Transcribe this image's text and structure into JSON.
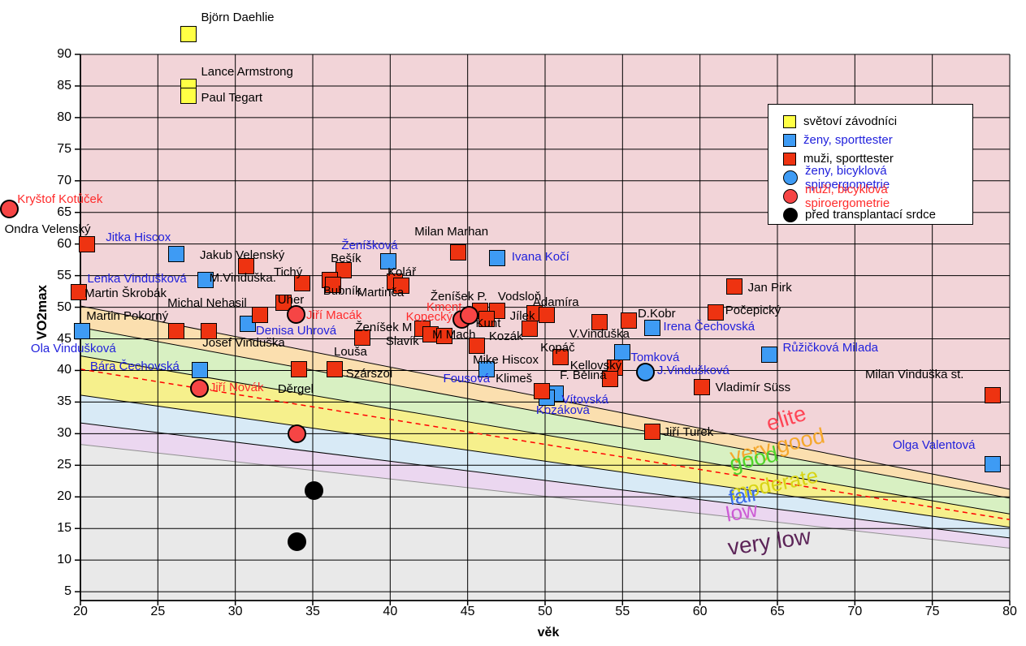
{
  "legend": {
    "items": [
      {
        "label": "světoví závodníci",
        "marker": "square",
        "fill": "#FFFF45",
        "text_color": "#000000"
      },
      {
        "label": "ženy, sporttester",
        "marker": "square",
        "fill": "#3E9BF4",
        "text_color": "#1F1FDC"
      },
      {
        "label": "muži, sporttester",
        "marker": "square",
        "fill": "#EE3311",
        "text_color": "#000000"
      },
      {
        "label": "ženy, bicyklová spiroergometrie",
        "marker": "circle",
        "fill": "#3E9BF4",
        "text_color": "#1F1FDC"
      },
      {
        "label": "muži, bicyklová spiroergometrie",
        "marker": "circle",
        "fill": "#F64545",
        "text_color": "#FF2B2B"
      },
      {
        "label": "před transplantací srdce",
        "marker": "circle",
        "fill": "#000000",
        "text_color": "#000000"
      }
    ]
  },
  "chart_data": {
    "type": "scatter",
    "title": "",
    "xlabel": "věk",
    "ylabel": "VO2max",
    "xlim": [
      20,
      80
    ],
    "ylim": [
      3.6,
      90
    ],
    "x_ticks": [
      20,
      25,
      30,
      35,
      40,
      45,
      50,
      55,
      60,
      65,
      70,
      75,
      80
    ],
    "y_ticks": [
      5,
      10,
      15,
      20,
      25,
      30,
      35,
      40,
      45,
      50,
      55,
      60,
      65,
      70,
      75,
      80,
      85,
      90
    ],
    "grid": true,
    "legend_position": "top-right",
    "zones": [
      {
        "name": "elite",
        "color": "#F2D4D8",
        "bottom_at_20": 50.2,
        "bottom_at_80": 21.2,
        "line": "#000000"
      },
      {
        "name": "very good",
        "color": "#FBDFAF",
        "bottom_at_20": 46.8,
        "bottom_at_80": 19.8,
        "line": "#000000"
      },
      {
        "name": "good",
        "color": "#D8F0C2",
        "bottom_at_20": 42.3,
        "bottom_at_80": 17.3,
        "line": "#000000"
      },
      {
        "name": "moderate",
        "color": "#F6F08C",
        "bottom_at_20": 36.1,
        "bottom_at_80": 15.2,
        "line": "#000000"
      },
      {
        "name": "fair",
        "color": "#D8EAF6",
        "bottom_at_20": 31.7,
        "bottom_at_80": 13.5,
        "line": "#000000"
      },
      {
        "name": "low",
        "color": "#EBD7F0",
        "bottom_at_20": 28.3,
        "bottom_at_80": 11.9,
        "line": "#909090"
      },
      {
        "name": "very low",
        "color": "#E9E9E9",
        "bottom_at_20": 3.6,
        "bottom_at_80": 3.6,
        "line": "none"
      }
    ],
    "reference_line": {
      "style": "dashed",
      "color": "#FF0000",
      "y_at_20": 40.2,
      "y_at_80": 16.4
    },
    "zone_labels": [
      {
        "text": "elite",
        "x": 65.6,
        "y": 32.4,
        "color": "#FF4455",
        "size": 27,
        "rot": -17
      },
      {
        "text": "very good",
        "x": 65.0,
        "y": 28.0,
        "color": "#F5A82C",
        "size": 27,
        "rot": -13
      },
      {
        "text": "good",
        "x": 63.5,
        "y": 25.9,
        "color": "#4FD42C",
        "size": 27,
        "rot": -13
      },
      {
        "text": "moderate",
        "x": 64.8,
        "y": 21.9,
        "color": "#D8D414",
        "size": 26,
        "rot": -12
      },
      {
        "text": "fair",
        "x": 62.8,
        "y": 20.1,
        "color": "#3B6BE8",
        "size": 26,
        "rot": -10
      },
      {
        "text": "low",
        "x": 62.7,
        "y": 17.6,
        "color": "#CC5BD4",
        "size": 26,
        "rot": -10
      },
      {
        "text": "very low",
        "x": 64.5,
        "y": 12.8,
        "color": "#5C2458",
        "size": 28,
        "rot": -8
      }
    ],
    "series": [
      {
        "name": "světoví závodníci",
        "marker": "square",
        "fill": "#FFFF45",
        "label_color": "#000000",
        "points": [
          {
            "l": "Björn Daehlie",
            "x": 27.0,
            "y": 93.2,
            "dx": 15,
            "dy": -20
          },
          {
            "l": "Lance Armstrong",
            "x": 27.0,
            "y": 84.9,
            "dx": 15,
            "dy": -18
          },
          {
            "l": "Paul Tegart",
            "x": 27.0,
            "y": 83.5,
            "dx": 15,
            "dy": 3
          }
        ]
      },
      {
        "name": "ženy, sporttester",
        "marker": "square",
        "fill": "#3E9BF4",
        "label_color": "#1F1FDC",
        "points": [
          {
            "l": "Jitka Hiscox",
            "x": 26.2,
            "y": 58.4,
            "dx": -87,
            "dy": -20
          },
          {
            "l": "Lenka Vindušková",
            "x": 28.1,
            "y": 54.3,
            "dx": -146,
            "dy": -1
          },
          {
            "l": "Ženíšková",
            "x": 39.9,
            "y": 57.3,
            "dx": -58,
            "dy": -19
          },
          {
            "l": "Ivana Kočí",
            "x": 46.9,
            "y": 57.8,
            "dx": 18,
            "dy": -1
          },
          {
            "l": "Denisa Uhrová",
            "x": 30.8,
            "y": 47.4,
            "dx": 10,
            "dy": 9
          },
          {
            "l": "Ola Vindušková",
            "x": 20.1,
            "y": 46.2,
            "dx": -63,
            "dy": 22
          },
          {
            "l": "Bára Čechovská",
            "x": 27.7,
            "y": 40.1,
            "dx": -135,
            "dy": -4
          },
          {
            "l": "Fousová",
            "x": 46.2,
            "y": 40.2,
            "dx": -53,
            "dy": 12
          },
          {
            "l": "Vítovská",
            "x": 50.7,
            "y": 36.3,
            "dx": 7,
            "dy": 8
          },
          {
            "l": "Kozáková",
            "x": 50.1,
            "y": 35.7,
            "dx": -13,
            "dy": 16
          },
          {
            "l": "Tomková",
            "x": 55.0,
            "y": 42.9,
            "dx": 10,
            "dy": 7
          },
          {
            "l": "Irena Čechovská",
            "x": 56.9,
            "y": 46.8,
            "dx": 14,
            "dy": -1
          },
          {
            "l": "Růžičková Milada",
            "x": 64.5,
            "y": 42.5,
            "dx": 16,
            "dy": -8
          },
          {
            "l": "Olga Valentová",
            "x": 78.9,
            "y": 25.2,
            "dx": -123,
            "dy": -23
          }
        ]
      },
      {
        "name": "muži, sporttester",
        "marker": "square",
        "fill": "#EE3311",
        "label_color": "#000000",
        "points": [
          {
            "l": "Ondra Velenský",
            "x": 20.4,
            "y": 60.0,
            "dx": -101,
            "dy": -18
          },
          {
            "l": "Jakub Velenský",
            "x": 30.7,
            "y": 56.5,
            "dx": -57,
            "dy": -13
          },
          {
            "l": "Milan Marhan",
            "x": 44.4,
            "y": 58.7,
            "dx": -54,
            "dy": -25
          },
          {
            "l": "Bešík",
            "x": 37.0,
            "y": 55.9,
            "dx": -16,
            "dy": -14
          },
          {
            "l": "M.Vinduška.",
            "x": 34.3,
            "y": 53.8,
            "dx": -114,
            "dy": -6
          },
          {
            "l": "Tichý",
            "x": 36.1,
            "y": 54.3,
            "dx": -69,
            "dy": -9
          },
          {
            "l": "Bubník",
            "x": 36.3,
            "y": 53.5,
            "dx": -12,
            "dy": 8
          },
          {
            "l": "Kolář",
            "x": 40.3,
            "y": 54.1,
            "dx": -9,
            "dy": -11
          },
          {
            "l": "Martinča",
            "x": 40.7,
            "y": 53.4,
            "dx": -54,
            "dy": 9
          },
          {
            "l": "Martin Škrobák",
            "x": 19.9,
            "y": 52.4,
            "dx": 7,
            "dy": 2
          },
          {
            "l": "Uher",
            "x": 33.1,
            "y": 50.7,
            "dx": -7,
            "dy": -3
          },
          {
            "l": "Michal Nehasil",
            "x": 31.6,
            "y": 48.8,
            "dx": -114,
            "dy": -14
          },
          {
            "l": "Martin Pokorný",
            "x": 26.2,
            "y": 46.2,
            "dx": -111,
            "dy": -18
          },
          {
            "l": "Josef Vinduška",
            "x": 28.3,
            "y": 46.2,
            "dx": -8,
            "dy": 15
          },
          {
            "l": "Děrgel",
            "x": 34.1,
            "y": 40.2,
            "dx": -26,
            "dy": 25
          },
          {
            "l": "Szárszoi",
            "x": 36.4,
            "y": 40.2,
            "dx": 14,
            "dy": 6
          },
          {
            "l": "Louša",
            "x": 38.2,
            "y": 45.2,
            "dx": -35,
            "dy": 18
          },
          {
            "l": "Ženíšek M",
            "x": 42.1,
            "y": 46.6,
            "dx": -83,
            "dy": -1
          },
          {
            "l": "Slavík",
            "x": 42.6,
            "y": 45.7,
            "dx": -55,
            "dy": 9
          },
          {
            "l": "M Mach",
            "x": 43.5,
            "y": 45.4,
            "dx": -15,
            "dy": -1
          },
          {
            "l": "Ženíšek P.",
            "x": 45.8,
            "y": 49.4,
            "dx": -61,
            "dy": -17
          },
          {
            "l": "Vodsloň",
            "x": 46.9,
            "y": 49.4,
            "dx": 1,
            "dy": -17
          },
          {
            "l": "Kunt",
            "x": 46.2,
            "y": 48.1,
            "dx": -13,
            "dy": 6
          },
          {
            "l": "Kozák",
            "x": 49.0,
            "y": 46.6,
            "dx": -50,
            "dy": 10
          },
          {
            "l": "Jílek",
            "x": 49.3,
            "y": 49.0,
            "dx": -30,
            "dy": 4
          },
          {
            "l": "Adamíra",
            "x": 50.1,
            "y": 48.8,
            "dx": -17,
            "dy": -15
          },
          {
            "l": "Mike Hiscox",
            "x": 45.6,
            "y": 43.9,
            "dx": -5,
            "dy": 18
          },
          {
            "l": "Klimeš",
            "x": 49.8,
            "y": 36.7,
            "dx": -57,
            "dy": -15
          },
          {
            "l": "Kopáč",
            "x": 51.0,
            "y": 42.1,
            "dx": -25,
            "dy": -11
          },
          {
            "l": "Kellovský",
            "x": 54.5,
            "y": 40.5,
            "dx": -55,
            "dy": -2
          },
          {
            "l": "F. Bělina",
            "x": 54.2,
            "y": 38.6,
            "dx": -62,
            "dy": -4
          },
          {
            "l": "V.Vinduška",
            "x": 53.5,
            "y": 47.6,
            "dx": -37,
            "dy": 15
          },
          {
            "l": "D.Kobr",
            "x": 55.4,
            "y": 47.9,
            "dx": 11,
            "dy": -8
          },
          {
            "l": "Jan Pirk",
            "x": 62.2,
            "y": 53.3,
            "dx": 17,
            "dy": 2
          },
          {
            "l": "Počepický",
            "x": 61.0,
            "y": 49.2,
            "dx": 12,
            "dy": -2
          },
          {
            "l": "Vladimír Süss",
            "x": 60.1,
            "y": 37.4,
            "dx": 17,
            "dy": 1
          },
          {
            "l": "Jiří Turek",
            "x": 56.9,
            "y": 30.3,
            "dx": 14,
            "dy": 1
          },
          {
            "l": "Milan Vinduška st.",
            "x": 78.9,
            "y": 36.1,
            "dx": -157,
            "dy": -25
          }
        ]
      },
      {
        "name": "ženy, bicyklová spiroergometrie",
        "marker": "circle",
        "fill": "#3E9BF4",
        "label_color": "#1F1FDC",
        "points": [
          {
            "l": "J.Vindušková",
            "x": 56.5,
            "y": 39.8,
            "dx": 14,
            "dy": -1
          }
        ]
      },
      {
        "name": "muži, bicyklová spiroergometrie",
        "marker": "circle",
        "fill": "#F64545",
        "label_color": "#FF2B2B",
        "points": [
          {
            "l": "Kryštof Kotůček",
            "x": 15.4,
            "y": 65.6,
            "dx": 10,
            "dy": -11
          },
          {
            "l": "Jiří Macák",
            "x": 33.9,
            "y": 48.8,
            "dx": 13,
            "dy": 1
          },
          {
            "l": "Jiří Novák",
            "x": 27.7,
            "y": 37.2,
            "dx": 12,
            "dy": 0
          },
          {
            "l": "Kment",
            "x": 44.6,
            "y": 48.1,
            "dx": -43,
            "dy": -14
          },
          {
            "l": "Kopecký",
            "x": 45.1,
            "y": 48.7,
            "dx": -78,
            "dy": 2
          },
          {
            "l": "",
            "x": 34.0,
            "y": 30.0,
            "dx": 0,
            "dy": 0
          }
        ]
      },
      {
        "name": "před transplantací srdce",
        "marker": "circle",
        "fill": "#000000",
        "label_color": "#000000",
        "points": [
          {
            "l": "",
            "x": 35.1,
            "y": 21.0,
            "dx": 0,
            "dy": 0
          },
          {
            "l": "",
            "x": 34.0,
            "y": 12.9,
            "dx": 0,
            "dy": 0
          }
        ]
      }
    ]
  }
}
